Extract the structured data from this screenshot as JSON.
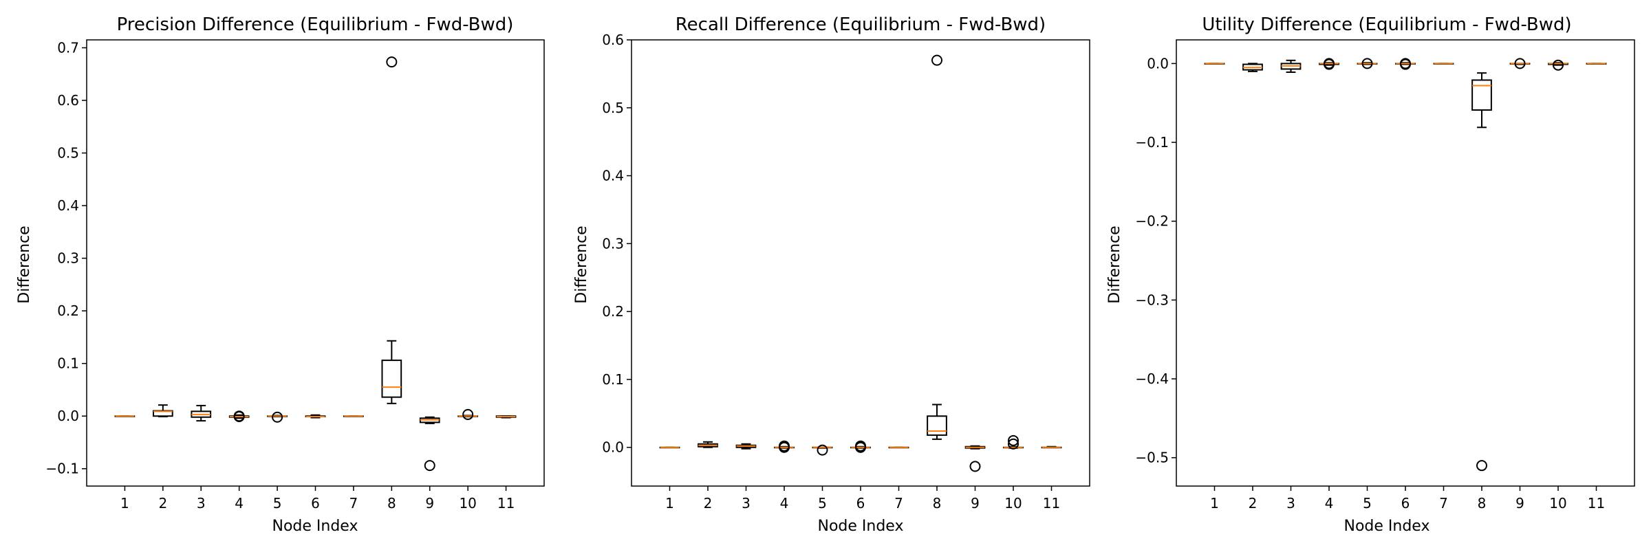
{
  "chart_data": [
    {
      "type": "box",
      "title": "Precision Difference (Equilibrium - Fwd-Bwd)",
      "xlabel": "Node Index",
      "ylabel": "Difference",
      "categories": [
        "1",
        "2",
        "3",
        "4",
        "5",
        "6",
        "7",
        "8",
        "9",
        "10",
        "11"
      ],
      "ylim": [
        -0.133,
        0.715
      ],
      "yticks": [
        -0.1,
        0.0,
        0.1,
        0.2,
        0.3,
        0.4,
        0.5,
        0.6,
        0.7
      ],
      "ytick_labels": [
        "−0.1",
        "0.0",
        "0.1",
        "0.2",
        "0.3",
        "0.4",
        "0.5",
        "0.6",
        "0.7"
      ],
      "boxes": [
        {
          "whislo": 0.0,
          "q1": 0.0,
          "med": 0.0,
          "q3": 0.0,
          "whishi": 0.0,
          "fliers": []
        },
        {
          "whislo": -0.001,
          "q1": 0.0,
          "med": 0.009,
          "q3": 0.01,
          "whishi": 0.021,
          "fliers": []
        },
        {
          "whislo": -0.009,
          "q1": -0.002,
          "med": 0.003,
          "q3": 0.009,
          "whishi": 0.02,
          "fliers": []
        },
        {
          "whislo": -0.004,
          "q1": -0.002,
          "med": -0.001,
          "q3": 0.0,
          "whishi": 0.002,
          "fliers": [
            -0.001,
            0.0
          ]
        },
        {
          "whislo": -0.001,
          "q1": 0.0,
          "med": 0.0,
          "q3": 0.0,
          "whishi": 0.001,
          "fliers": [
            -0.002
          ]
        },
        {
          "whislo": -0.003,
          "q1": -0.001,
          "med": -0.001,
          "q3": 0.0,
          "whishi": 0.002,
          "fliers": []
        },
        {
          "whislo": 0.0,
          "q1": 0.0,
          "med": 0.0,
          "q3": 0.0,
          "whishi": 0.0,
          "fliers": []
        },
        {
          "whislo": 0.024,
          "q1": 0.036,
          "med": 0.055,
          "q3": 0.106,
          "whishi": 0.143,
          "fliers": [
            0.673
          ]
        },
        {
          "whislo": -0.014,
          "q1": -0.012,
          "med": -0.007,
          "q3": -0.004,
          "whishi": -0.002,
          "fliers": [
            -0.094
          ]
        },
        {
          "whislo": -0.001,
          "q1": 0.0,
          "med": 0.0,
          "q3": 0.0,
          "whishi": 0.001,
          "fliers": [
            0.003
          ]
        },
        {
          "whislo": -0.003,
          "q1": -0.002,
          "med": -0.001,
          "q3": 0.0,
          "whishi": 0.0,
          "fliers": []
        }
      ]
    },
    {
      "type": "box",
      "title": "Recall Difference (Equilibrium - Fwd-Bwd)",
      "xlabel": "Node Index",
      "ylabel": "Difference",
      "categories": [
        "1",
        "2",
        "3",
        "4",
        "5",
        "6",
        "7",
        "8",
        "9",
        "10",
        "11"
      ],
      "ylim": [
        -0.057,
        0.6
      ],
      "yticks": [
        0.0,
        0.1,
        0.2,
        0.3,
        0.4,
        0.5,
        0.6
      ],
      "ytick_labels": [
        "0.0",
        "0.1",
        "0.2",
        "0.3",
        "0.4",
        "0.5",
        "0.6"
      ],
      "boxes": [
        {
          "whislo": 0.0,
          "q1": 0.0,
          "med": 0.0,
          "q3": 0.0,
          "whishi": 0.0,
          "fliers": []
        },
        {
          "whislo": 0.0,
          "q1": 0.001,
          "med": 0.003,
          "q3": 0.005,
          "whishi": 0.008,
          "fliers": []
        },
        {
          "whislo": -0.002,
          "q1": 0.0,
          "med": 0.002,
          "q3": 0.003,
          "whishi": 0.005,
          "fliers": []
        },
        {
          "whislo": -0.001,
          "q1": 0.0,
          "med": 0.0,
          "q3": 0.0,
          "whishi": 0.001,
          "fliers": [
            0.0,
            0.002
          ]
        },
        {
          "whislo": -0.001,
          "q1": 0.0,
          "med": 0.0,
          "q3": 0.0,
          "whishi": 0.0,
          "fliers": [
            -0.004
          ]
        },
        {
          "whislo": -0.001,
          "q1": 0.0,
          "med": 0.0,
          "q3": 0.0,
          "whishi": 0.001,
          "fliers": [
            0.0,
            0.002
          ]
        },
        {
          "whislo": 0.0,
          "q1": 0.0,
          "med": 0.0,
          "q3": 0.0,
          "whishi": 0.0,
          "fliers": []
        },
        {
          "whislo": 0.012,
          "q1": 0.018,
          "med": 0.024,
          "q3": 0.046,
          "whishi": 0.063,
          "fliers": [
            0.57
          ]
        },
        {
          "whislo": -0.002,
          "q1": -0.001,
          "med": 0.0,
          "q3": 0.001,
          "whishi": 0.002,
          "fliers": [
            -0.028
          ]
        },
        {
          "whislo": -0.001,
          "q1": 0.0,
          "med": 0.0,
          "q3": 0.0,
          "whishi": 0.001,
          "fliers": [
            0.005,
            0.01
          ]
        },
        {
          "whislo": 0.0,
          "q1": 0.0,
          "med": 0.0,
          "q3": 0.0,
          "whishi": 0.001,
          "fliers": []
        }
      ]
    },
    {
      "type": "box",
      "title": "Utility Difference (Equilibrium - Fwd-Bwd)",
      "xlabel": "Node Index",
      "ylabel": "Difference",
      "categories": [
        "1",
        "2",
        "3",
        "4",
        "5",
        "6",
        "7",
        "8",
        "9",
        "10",
        "11"
      ],
      "ylim": [
        -0.536,
        0.03
      ],
      "yticks": [
        -0.5,
        -0.4,
        -0.3,
        -0.2,
        -0.1,
        0.0
      ],
      "ytick_labels": [
        "−0.5",
        "−0.4",
        "−0.3",
        "−0.2",
        "−0.1",
        "0.0"
      ],
      "boxes": [
        {
          "whislo": 0.0,
          "q1": 0.0,
          "med": 0.0,
          "q3": 0.0,
          "whishi": 0.0,
          "fliers": []
        },
        {
          "whislo": -0.01,
          "q1": -0.008,
          "med": -0.005,
          "q3": -0.001,
          "whishi": 0.0,
          "fliers": []
        },
        {
          "whislo": -0.011,
          "q1": -0.007,
          "med": -0.003,
          "q3": 0.0,
          "whishi": 0.004,
          "fliers": []
        },
        {
          "whislo": -0.002,
          "q1": -0.001,
          "med": 0.0,
          "q3": 0.0,
          "whishi": 0.001,
          "fliers": [
            -0.001,
            0.0
          ]
        },
        {
          "whislo": -0.001,
          "q1": 0.0,
          "med": 0.0,
          "q3": 0.0,
          "whishi": 0.001,
          "fliers": [
            0.0
          ]
        },
        {
          "whislo": -0.001,
          "q1": 0.0,
          "med": 0.0,
          "q3": 0.0,
          "whishi": 0.001,
          "fliers": [
            -0.001,
            0.0
          ]
        },
        {
          "whislo": 0.0,
          "q1": 0.0,
          "med": 0.0,
          "q3": 0.0,
          "whishi": 0.0,
          "fliers": []
        },
        {
          "whislo": -0.081,
          "q1": -0.059,
          "med": -0.028,
          "q3": -0.021,
          "whishi": -0.012,
          "fliers": [
            -0.51
          ]
        },
        {
          "whislo": -0.001,
          "q1": 0.0,
          "med": 0.0,
          "q3": 0.0,
          "whishi": 0.0,
          "fliers": [
            0.0
          ]
        },
        {
          "whislo": -0.002,
          "q1": -0.001,
          "med": 0.0,
          "q3": 0.0,
          "whishi": 0.001,
          "fliers": [
            -0.002
          ]
        },
        {
          "whislo": 0.0,
          "q1": 0.0,
          "med": 0.0,
          "q3": 0.0,
          "whishi": 0.0,
          "fliers": []
        }
      ]
    }
  ],
  "colors": {
    "box_edge": "#000000",
    "median": "#ff7f0e",
    "axis": "#000000",
    "background": "#ffffff"
  }
}
